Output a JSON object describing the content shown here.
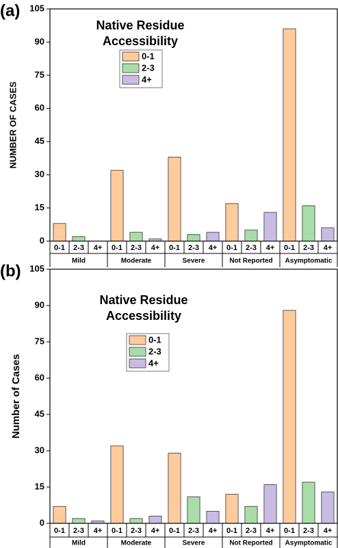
{
  "chart_data": [
    {
      "type": "bar",
      "panel": "(a)",
      "title": [
        "Native Residue",
        "Accessibility"
      ],
      "ylabel": "NUMBER OF CASES",
      "categories": [
        "Mild",
        "Moderate",
        "Severe",
        "Not Reported",
        "Asymptomatic"
      ],
      "series": [
        {
          "name": "0-1",
          "color": "#fdcb9c",
          "values": [
            8,
            32,
            38,
            17,
            96
          ]
        },
        {
          "name": "2-3",
          "color": "#a9dca9",
          "values": [
            2,
            4,
            3,
            5,
            16
          ]
        },
        {
          "name": "4+",
          "color": "#c8bce3",
          "values": [
            0,
            1,
            4,
            13,
            6
          ]
        }
      ],
      "ylim": [
        0,
        105
      ],
      "yticks": [
        0,
        15,
        30,
        45,
        60,
        75,
        90,
        105
      ],
      "legend": "upper left"
    },
    {
      "type": "bar",
      "panel": "(b)",
      "title": [
        "Native Residue",
        "Accessibility"
      ],
      "ylabel": "Number of Cases",
      "categories": [
        "Mild",
        "Moderate",
        "Severe",
        "Not Reported",
        "Asymptomatic"
      ],
      "series": [
        {
          "name": "0-1",
          "color": "#fdcb9c",
          "values": [
            7,
            32,
            29,
            12,
            88
          ]
        },
        {
          "name": "2-3",
          "color": "#a9dca9",
          "values": [
            2,
            2,
            11,
            7,
            17
          ]
        },
        {
          "name": "4+",
          "color": "#c8bce3",
          "values": [
            1,
            3,
            5,
            16,
            13
          ]
        }
      ],
      "ylim": [
        0,
        105
      ],
      "yticks": [
        0,
        15,
        30,
        45,
        60,
        75,
        90,
        105
      ],
      "legend": "upper left"
    }
  ]
}
